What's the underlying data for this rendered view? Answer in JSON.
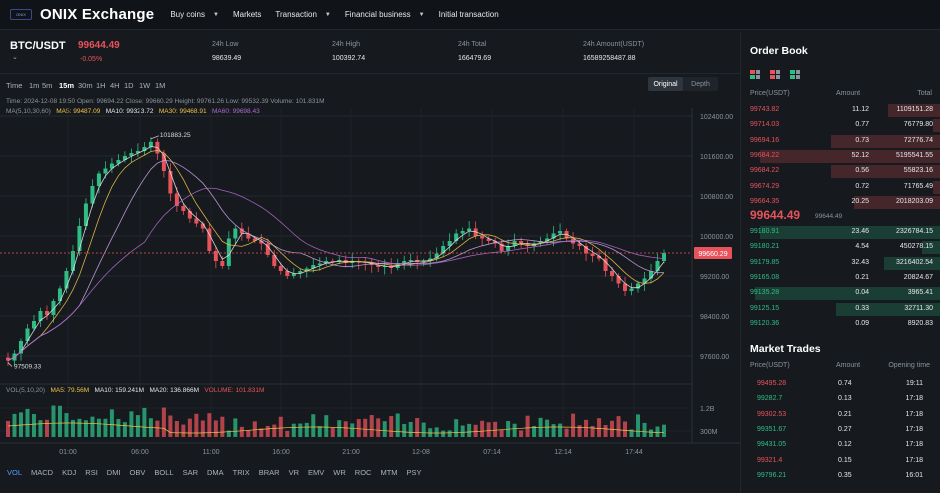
{
  "header": {
    "logo_badge": "ONIX",
    "brand": "ONIX Exchange",
    "nav": [
      {
        "label": "Buy coins",
        "dropdown": true
      },
      {
        "label": "Markets",
        "dropdown": false
      },
      {
        "label": "Transaction",
        "dropdown": true
      },
      {
        "label": "Financial business",
        "dropdown": true
      },
      {
        "label": "Initial transaction",
        "dropdown": false
      }
    ]
  },
  "ticker": {
    "pair": "BTC/USDT",
    "price": "99644.49",
    "change": "-0.05%",
    "stats": [
      {
        "label": "24h Low",
        "value": "98639.49"
      },
      {
        "label": "24h High",
        "value": "100392.74"
      },
      {
        "label": "24h Total",
        "value": "166479.69"
      },
      {
        "label": "24h Amount(USDT)",
        "value": "16589258487.88"
      }
    ]
  },
  "toolbar": {
    "timeframes": [
      "Time",
      "1m",
      "5m",
      "15m",
      "30m",
      "1H",
      "4H",
      "1D",
      "1W",
      "1M"
    ],
    "active_timeframe": "15m",
    "views": [
      "Original",
      "Depth"
    ],
    "active_view": "Original"
  },
  "chart_info": {
    "ohlc_line": "Time: 2024-12-08 19:50   Open: 99694.22   Close: 99660.29   Height: 99761.26   Low: 99532.39   Volume: 101.831M",
    "ma_params": "MA(5,10,30,60)",
    "ma5": "MA5: 99487.09",
    "ma10": "MA10: 99323.72",
    "ma30": "MA30: 99468.91",
    "ma60": "MA60: 99698.43",
    "vol_params": "VOL(5,10,20)",
    "vol_ma5": "MA5: 79.56M",
    "vol_ma10": "MA10: 159.241M",
    "vol_ma20": "MA20: 136.866M",
    "vol_value": "VOLUME: 101.831M",
    "high_marker": "101883.25",
    "low_marker": "97509.33",
    "current_price_tag": "99660.29"
  },
  "colors": {
    "up": "#2ebd85",
    "down": "#e8525b",
    "ma5": "#e6e6e6",
    "ma10": "#f0c24a",
    "ma30": "#c9a1e6",
    "ma60": "#b06ad0"
  },
  "chart_data": {
    "type": "candlestick",
    "y_ticks": [
      "102400.00",
      "101600.00",
      "100800.00",
      "100000.00",
      "99200.00",
      "98400.00",
      "97600.00"
    ],
    "ylim": [
      97200,
      102560
    ],
    "x_ticks": [
      "01:00",
      "06:00",
      "11:00",
      "16:00",
      "21:00",
      "12-08",
      "07:14",
      "12:14",
      "17:44"
    ],
    "vol_ticks": [
      "1.2B",
      "300M"
    ],
    "price_points": [
      97509,
      97650,
      97900,
      98150,
      98300,
      98500,
      98420,
      98700,
      98950,
      99300,
      99700,
      100200,
      100650,
      101000,
      101250,
      101350,
      101450,
      101520,
      101600,
      101660,
      101700,
      101780,
      101883,
      101650,
      101300,
      100850,
      100600,
      100500,
      100350,
      100250,
      100150,
      99700,
      99500,
      99400,
      99950,
      100150,
      100050,
      99950,
      99900,
      99850,
      99620,
      99400,
      99300,
      99200,
      99250,
      99300,
      99350,
      99420,
      99450,
      99500,
      99480,
      99520,
      99460,
      99500,
      99480,
      99460,
      99420,
      99380,
      99400,
      99360,
      99450,
      99500,
      99520,
      99480,
      99500,
      99550,
      99650,
      99800,
      99900,
      100050,
      100100,
      100150,
      100000,
      99950,
      99900,
      99850,
      99700,
      99800,
      99900,
      99850,
      99800,
      99850,
      99900,
      99950,
      100050,
      100100,
      99950,
      99850,
      99800,
      99650,
      99600,
      99550,
      99300,
      99200,
      99050,
      98900,
      98950,
      99050,
      99150,
      99300,
      99500,
      99660
    ]
  },
  "order_book": {
    "title": "Order Book",
    "headers": [
      "Price(USDT)",
      "Amount",
      "Total"
    ],
    "asks": [
      {
        "price": "99743.82",
        "amount": "11.12",
        "total": "1109151.28",
        "depth": 0.28
      },
      {
        "price": "99714.03",
        "amount": "0.77",
        "total": "76779.80",
        "depth": 0.04
      },
      {
        "price": "99694.16",
        "amount": "0.73",
        "total": "72776.74",
        "depth": 0.58
      },
      {
        "price": "99684.22",
        "amount": "52.12",
        "total": "5195541.55",
        "depth": 0.95
      },
      {
        "price": "99684.22",
        "amount": "0.56",
        "total": "55823.16",
        "depth": 0.58
      },
      {
        "price": "99674.29",
        "amount": "0.72",
        "total": "71765.49",
        "depth": 0.04
      },
      {
        "price": "99664.35",
        "amount": "20.25",
        "total": "2018203.09",
        "depth": 0.46
      }
    ],
    "mid_price": "99644.49",
    "mid_sub": "99644.49",
    "bids": [
      {
        "price": "99180.91",
        "amount": "23.46",
        "total": "2326784.15",
        "depth": 0.95
      },
      {
        "price": "99180.21",
        "amount": "4.54",
        "total": "450278.15",
        "depth": 0.1
      },
      {
        "price": "99179.85",
        "amount": "32.43",
        "total": "3216402.54",
        "depth": 0.3
      },
      {
        "price": "99165.08",
        "amount": "0.21",
        "total": "20824.67",
        "depth": 0.0
      },
      {
        "price": "99135.28",
        "amount": "0.04",
        "total": "3965.41",
        "depth": 0.98
      },
      {
        "price": "99125.15",
        "amount": "0.33",
        "total": "32711.30",
        "depth": 0.55
      },
      {
        "price": "99120.36",
        "amount": "0.09",
        "total": "8920.83",
        "depth": 0.0
      }
    ]
  },
  "market_trades": {
    "title": "Market Trades",
    "headers": [
      "Price(USDT)",
      "Amount",
      "Opening time"
    ],
    "rows": [
      {
        "price": "99495.28",
        "amount": "0.74",
        "time": "19:11",
        "side": "down"
      },
      {
        "price": "99282.7",
        "amount": "0.13",
        "time": "17:18",
        "side": "up"
      },
      {
        "price": "99302.53",
        "amount": "0.21",
        "time": "17:18",
        "side": "down"
      },
      {
        "price": "99351.67",
        "amount": "0.27",
        "time": "17:18",
        "side": "up"
      },
      {
        "price": "99431.05",
        "amount": "0.12",
        "time": "17:18",
        "side": "up"
      },
      {
        "price": "99321.4",
        "amount": "0.15",
        "time": "17:18",
        "side": "down"
      },
      {
        "price": "99796.21",
        "amount": "0.35",
        "time": "16:01",
        "side": "up"
      }
    ]
  },
  "indicators": [
    "VOL",
    "MACD",
    "KDJ",
    "RSI",
    "DMI",
    "OBV",
    "BOLL",
    "SAR",
    "DMA",
    "TRIX",
    "BRAR",
    "VR",
    "EMV",
    "WR",
    "ROC",
    "MTM",
    "PSY"
  ],
  "active_indicator": "VOL"
}
